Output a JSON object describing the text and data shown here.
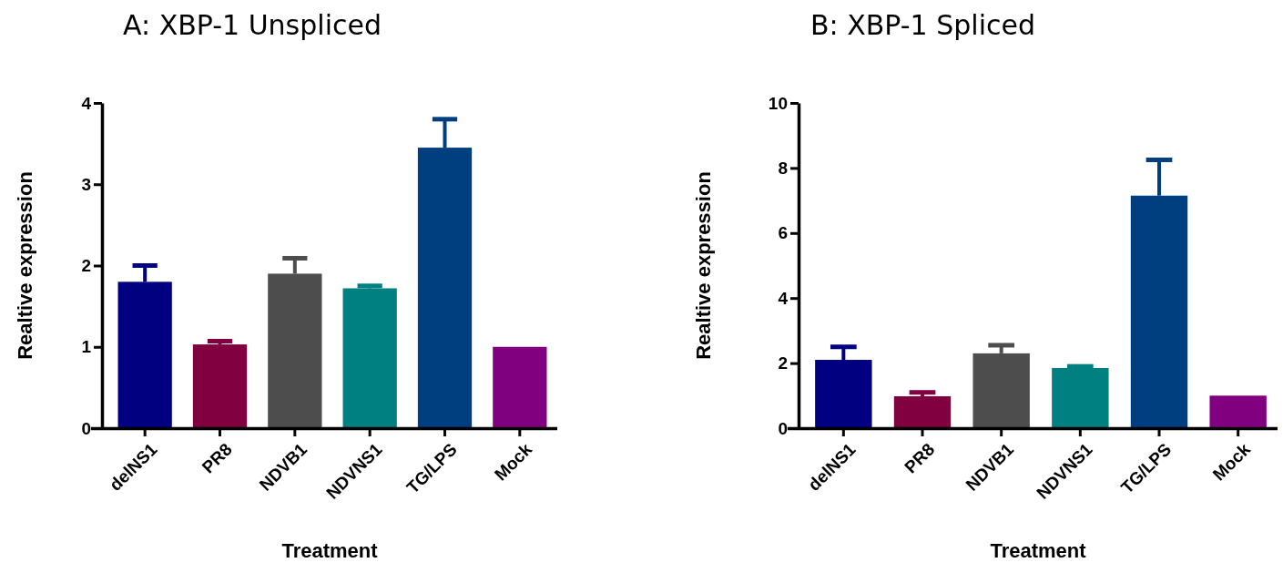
{
  "chart_data": [
    {
      "type": "bar",
      "title": "A: XBP-1 Unspliced",
      "xlabel": "Treatment",
      "ylabel": "Realtive expression",
      "categories": [
        "delNS1",
        "PR8",
        "NDVB1",
        "NDVNS1",
        "TG/LPS",
        "Mock"
      ],
      "values": [
        1.8,
        1.03,
        1.9,
        1.72,
        3.45,
        1.0
      ],
      "errors": [
        [
          1.8,
          2.0
        ],
        [
          1.03,
          1.07
        ],
        [
          1.9,
          2.09
        ],
        [
          1.72,
          1.75
        ],
        [
          3.45,
          3.8
        ],
        null
      ],
      "colors": [
        "#000080",
        "#800040",
        "#4d4d4d",
        "#008080",
        "#003f7f",
        "#800080"
      ],
      "ylim": [
        0,
        4
      ],
      "yticks": [
        0,
        1,
        2,
        3,
        4
      ]
    },
    {
      "type": "bar",
      "title": "B: XBP-1 Spliced",
      "xlabel": "Treatment",
      "ylabel": "Realtive expression",
      "categories": [
        "delNS1",
        "PR8",
        "NDVB1",
        "NDVNS1",
        "TG/LPS",
        "Mock"
      ],
      "values": [
        2.1,
        0.98,
        2.3,
        1.85,
        7.15,
        1.0
      ],
      "errors": [
        [
          2.1,
          2.5
        ],
        [
          0.98,
          1.1
        ],
        [
          2.3,
          2.55
        ],
        [
          1.85,
          1.9
        ],
        [
          7.15,
          8.25
        ],
        null
      ],
      "colors": [
        "#000080",
        "#800040",
        "#4d4d4d",
        "#008080",
        "#003f7f",
        "#800080"
      ],
      "ylim": [
        0,
        10
      ],
      "yticks": [
        0,
        2,
        4,
        6,
        8,
        10
      ]
    }
  ]
}
